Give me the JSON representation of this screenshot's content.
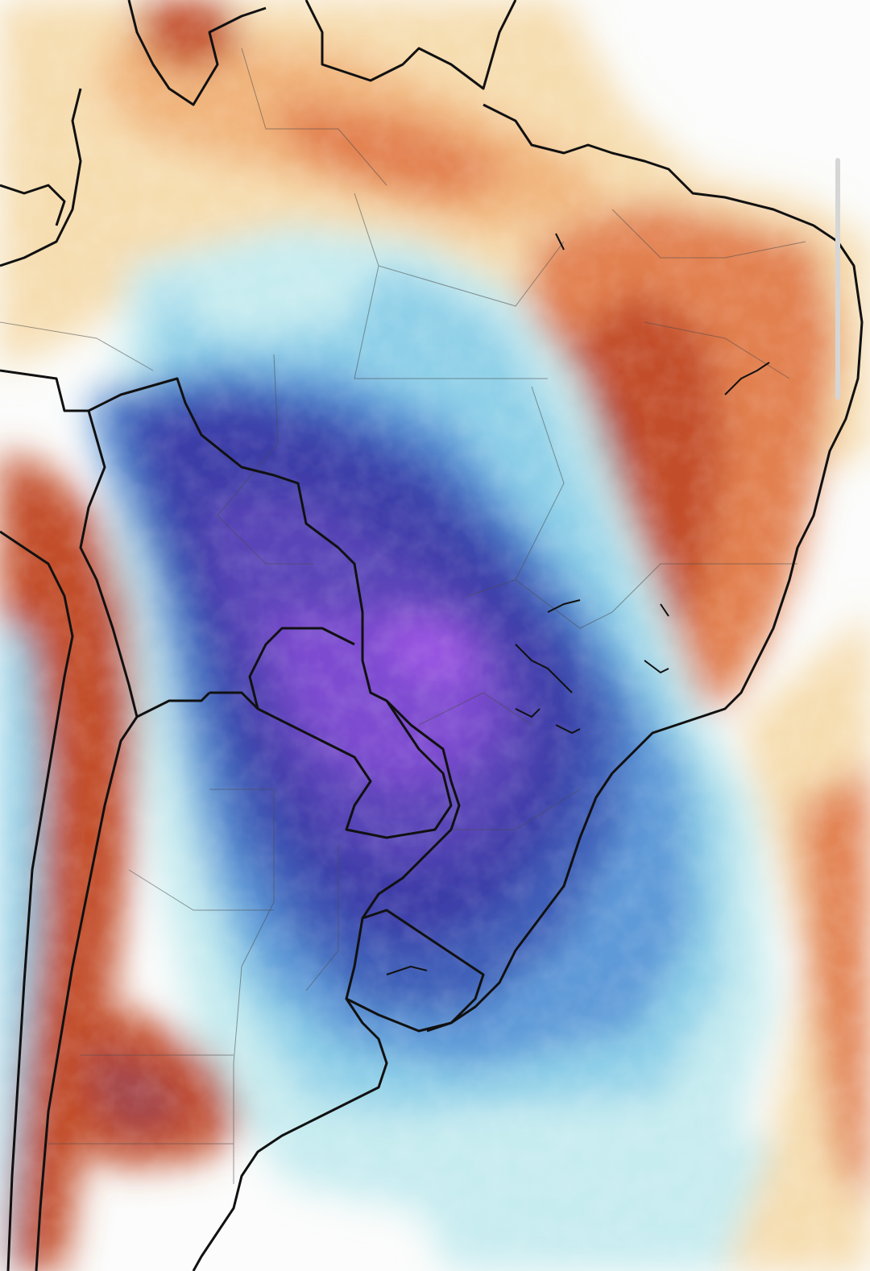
{
  "map": {
    "type": "temperature-anomaly",
    "region": "South America",
    "colors": {
      "sea_white": "#fbfcfb",
      "warm_pale": "#f6ddb0",
      "warm_light": "#f1b57d",
      "warm_mid": "#e2804f",
      "warm_dark": "#c24d2a",
      "warm_deep": "#9e2b22",
      "warm_mauve": "#a3484f",
      "cool_pale": "#c7ecf0",
      "cool_light": "#8fd0e8",
      "cool_mid": "#5e9ad8",
      "cool_dark": "#3f5fb8",
      "cold_deep": "#3d3ea8",
      "cold_indigo": "#5a45b8",
      "cold_violet": "#7d4bd0",
      "cold_purple": "#9a55e2",
      "border": "#111111",
      "subdivision": "#4a4a4a"
    },
    "layers": [
      "temperature-field",
      "country-borders",
      "state-borders"
    ]
  },
  "ui": {
    "scrollbar": {
      "visible": true
    }
  }
}
